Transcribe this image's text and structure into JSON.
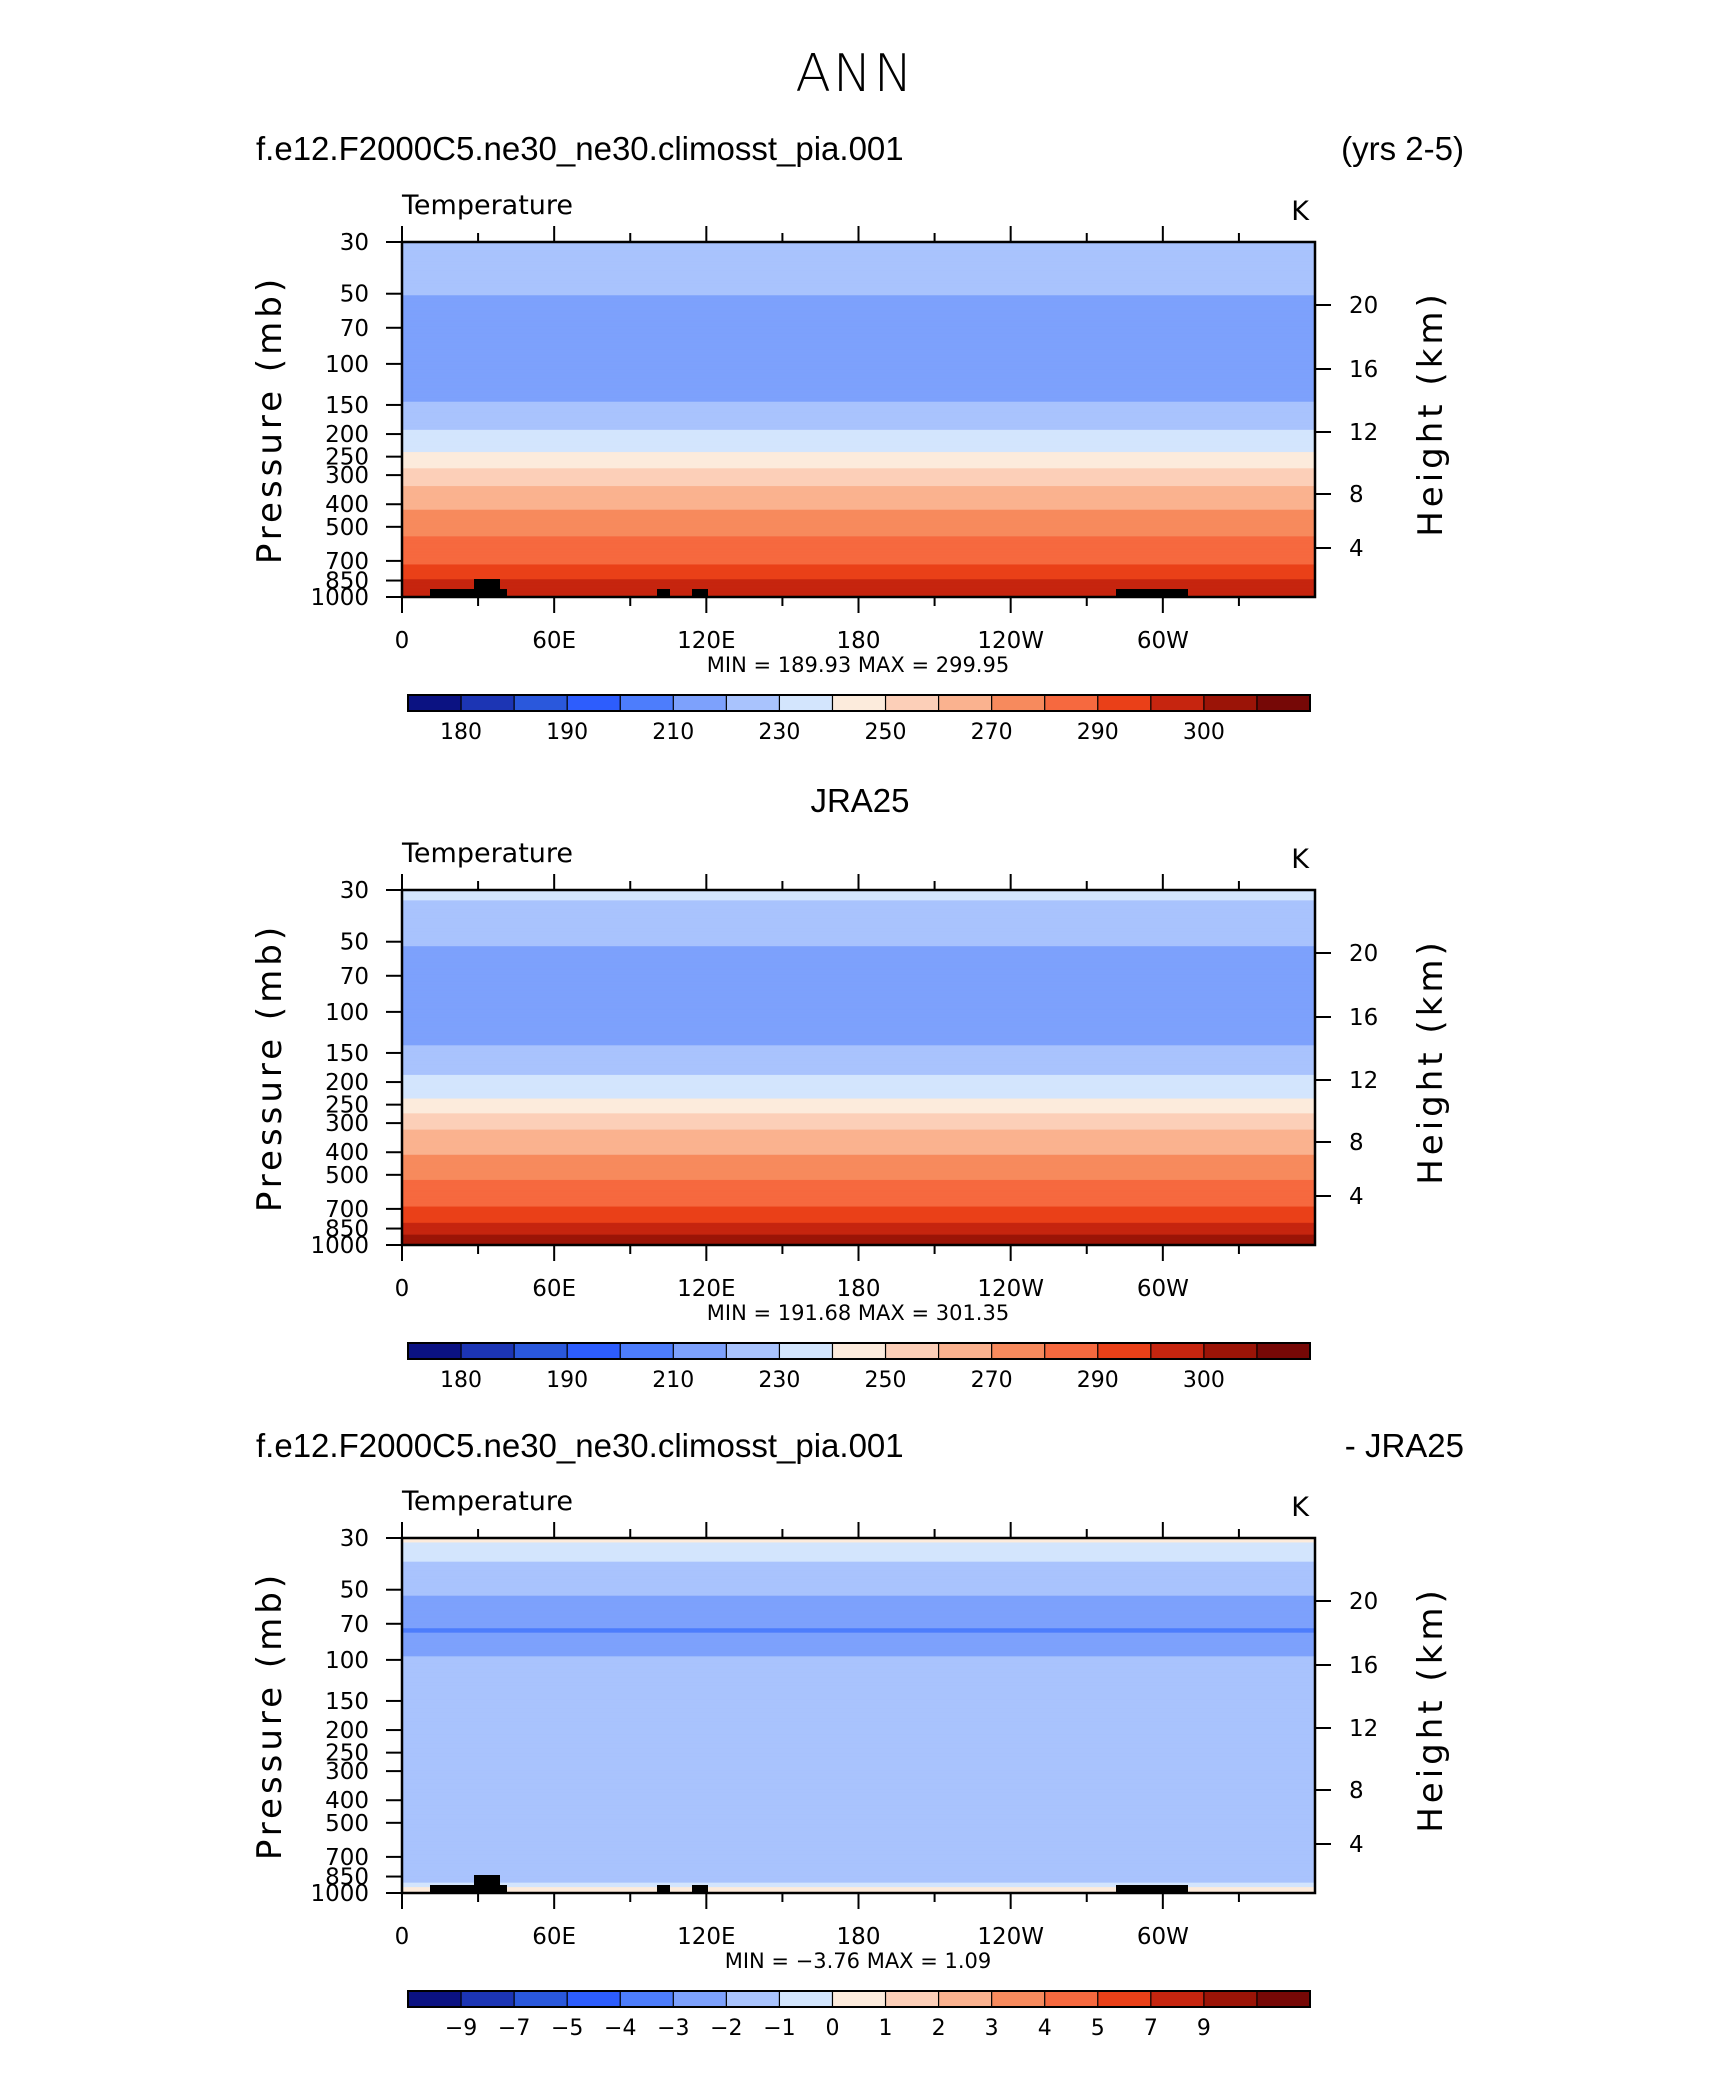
{
  "figure_title": "ANN",
  "captions": {
    "panel1_left": "f.e12.F2000C5.ne30_ne30.climosst_pia.001",
    "panel1_right": "(yrs 2-5)",
    "panel2_center": "JRA25",
    "panel3_left": "f.e12.F2000C5.ne30_ne30.climosst_pia.001",
    "panel3_right": "- JRA25"
  },
  "chart_data": [
    {
      "type": "heatmap",
      "title": "Temperature",
      "units": "K",
      "ylabel": "Pressure (mb)",
      "ylabel_right": "Height (km)",
      "y_scale": "log",
      "y_reversed": true,
      "y_ticks": [
        "30",
        "50",
        "70",
        "100",
        "150",
        "200",
        "250",
        "300",
        "400",
        "500",
        "700",
        "850",
        "1000"
      ],
      "y_right_ticks": [
        "20",
        "16",
        "12",
        "8",
        "4"
      ],
      "x_ticks": [
        "0",
        "60E",
        "120E",
        "180",
        "120W",
        "60W"
      ],
      "stats_text": "MIN = 189.93 MAX = 299.95",
      "min": 189.93,
      "max": 299.95,
      "profile": {
        "pressure": [
          30,
          40,
          60,
          80,
          120,
          160,
          200,
          250,
          280,
          320,
          400,
          500,
          600,
          700,
          800,
          900,
          1000
        ],
        "temperature": [
          220,
          215,
          206,
          203,
          205,
          213,
          222,
          232,
          240,
          248,
          258,
          267,
          273,
          279,
          283,
          288,
          290
        ]
      },
      "colorbar": {
        "labels": [
          "180",
          "190",
          "210",
          "230",
          "250",
          "270",
          "290",
          "300"
        ],
        "colors": [
          "#0b1282",
          "#1c35b4",
          "#2a58dc",
          "#2d5dfd",
          "#4d7dfc",
          "#7da1fc",
          "#a9c3fd",
          "#d3e5fd",
          "#fcebdc",
          "#fccfb8",
          "#fab28f",
          "#f78a5d",
          "#f6693f",
          "#ea4018",
          "#c6250f",
          "#9b1407",
          "#760806"
        ]
      }
    },
    {
      "type": "heatmap",
      "title": "Temperature",
      "units": "K",
      "ylabel": "Pressure (mb)",
      "ylabel_right": "Height (km)",
      "y_scale": "log",
      "y_reversed": true,
      "y_ticks": [
        "30",
        "50",
        "70",
        "100",
        "150",
        "200",
        "250",
        "300",
        "400",
        "500",
        "700",
        "850",
        "1000"
      ],
      "y_right_ticks": [
        "20",
        "16",
        "12",
        "8",
        "4"
      ],
      "x_ticks": [
        "0",
        "60E",
        "120E",
        "180",
        "120W",
        "60W"
      ],
      "stats_text": "MIN = 191.68 MAX = 301.35",
      "min": 191.68,
      "max": 301.35,
      "profile": {
        "pressure": [
          30,
          40,
          60,
          80,
          120,
          160,
          200,
          250,
          280,
          320,
          400,
          500,
          600,
          700,
          800,
          900,
          1000
        ],
        "temperature": [
          222,
          216,
          206,
          204,
          206,
          214,
          223,
          233,
          242,
          250,
          259,
          268,
          275,
          281,
          285,
          290,
          293
        ]
      },
      "colorbar": {
        "labels": [
          "180",
          "190",
          "210",
          "230",
          "250",
          "270",
          "290",
          "300"
        ],
        "colors": [
          "#0b1282",
          "#1c35b4",
          "#2a58dc",
          "#2d5dfd",
          "#4d7dfc",
          "#7da1fc",
          "#a9c3fd",
          "#d3e5fd",
          "#fcebdc",
          "#fccfb8",
          "#fab28f",
          "#f78a5d",
          "#f6693f",
          "#ea4018",
          "#c6250f",
          "#9b1407",
          "#760806"
        ]
      }
    },
    {
      "type": "heatmap",
      "title": "Temperature",
      "units": "K",
      "ylabel": "Pressure (mb)",
      "ylabel_right": "Height (km)",
      "y_scale": "log",
      "y_reversed": true,
      "y_ticks": [
        "30",
        "50",
        "70",
        "100",
        "150",
        "200",
        "250",
        "300",
        "400",
        "500",
        "700",
        "850",
        "1000"
      ],
      "y_right_ticks": [
        "20",
        "16",
        "12",
        "8",
        "4"
      ],
      "x_ticks": [
        "0",
        "60E",
        "120E",
        "180",
        "120W",
        "60W"
      ],
      "stats_text": "MIN = −3.76 MAX = 1.09",
      "min": -3.76,
      "max": 1.09,
      "profile": {
        "pressure": [
          30,
          35,
          45,
          60,
          75,
          90,
          110,
          150,
          250,
          350,
          500,
          700,
          880,
          950,
          1000
        ],
        "difference": [
          0.3,
          -0.8,
          -1.5,
          -2.4,
          -3.1,
          -2.2,
          -1.6,
          -1.4,
          -1.3,
          -1.3,
          -1.1,
          -1.2,
          -1.4,
          0.2,
          0.2
        ]
      },
      "colorbar": {
        "labels": [
          "−9",
          "−7",
          "−5",
          "−4",
          "−3",
          "−2",
          "−1",
          "0",
          "1",
          "2",
          "3",
          "4",
          "5",
          "7",
          "9"
        ],
        "colors": [
          "#0b1282",
          "#1c35b4",
          "#2a58dc",
          "#2d5dfd",
          "#4d7dfc",
          "#7da1fc",
          "#a9c3fd",
          "#d3e5fd",
          "#fcebdc",
          "#fccfb8",
          "#fab28f",
          "#f78a5d",
          "#f6693f",
          "#ea4018",
          "#c6250f",
          "#9b1407",
          "#760806"
        ]
      }
    }
  ]
}
